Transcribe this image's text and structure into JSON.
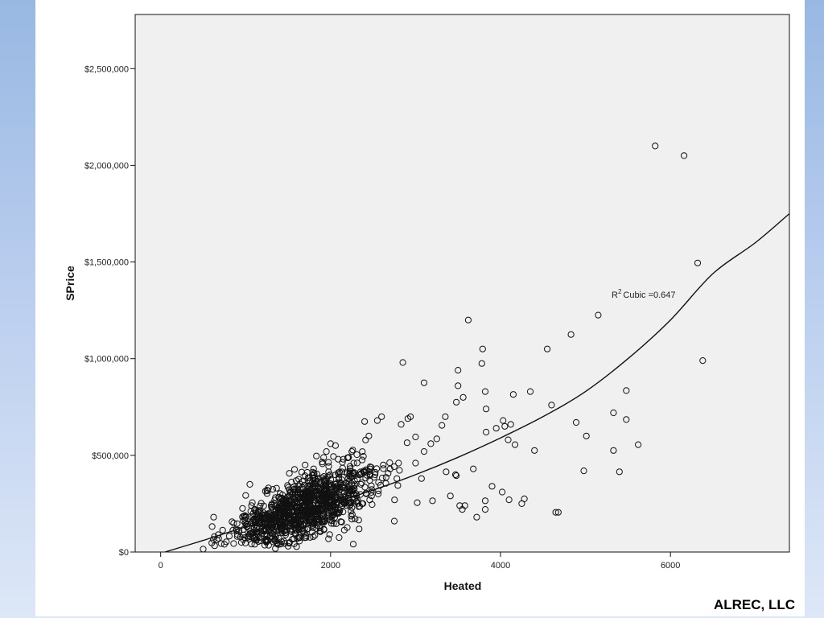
{
  "footer": {
    "credit": "ALREC, LLC"
  },
  "colors": {
    "plot_background": "#f0f0f0",
    "marker_stroke": "#111111",
    "fit_line": "#111111"
  },
  "chart_data": {
    "type": "scatter",
    "xlabel": "Heated",
    "ylabel": "SPrice",
    "xlim": [
      -300,
      7400
    ],
    "ylim": [
      0,
      2780000
    ],
    "x_ticks": [
      0,
      2000,
      4000,
      6000
    ],
    "x_tick_labels": [
      "0",
      "2000",
      "4000",
      "6000"
    ],
    "y_ticks": [
      0,
      500000,
      1000000,
      1500000,
      2000000,
      2500000
    ],
    "y_tick_labels": [
      "$0",
      "$500,000",
      "$1,000,000",
      "$1,500,000",
      "$2,000,000",
      "$2,500,000"
    ],
    "grid": false,
    "marker": "open-circle",
    "fit": {
      "type": "cubic",
      "label_prefix": "R",
      "label_superscript": "2",
      "label_text": "Cubic =0.647",
      "curve": [
        [
          50,
          0
        ],
        [
          500,
          60000
        ],
        [
          1000,
          130000
        ],
        [
          1500,
          190000
        ],
        [
          2000,
          250000
        ],
        [
          2500,
          320000
        ],
        [
          3000,
          400000
        ],
        [
          3500,
          490000
        ],
        [
          4000,
          590000
        ],
        [
          4500,
          700000
        ],
        [
          5000,
          830000
        ],
        [
          5500,
          1000000
        ],
        [
          6000,
          1200000
        ],
        [
          6500,
          1440000
        ],
        [
          7000,
          1600000
        ],
        [
          7400,
          1750000
        ]
      ]
    },
    "dense_cluster": {
      "x_center": 1700,
      "x_spread": 700,
      "slope": 160,
      "intercept": -40000,
      "noise": 65000
    },
    "points": [
      [
        5820,
        2100000
      ],
      [
        6160,
        2050000
      ],
      [
        6320,
        1495000
      ],
      [
        6380,
        990000
      ],
      [
        5150,
        1225000
      ],
      [
        4830,
        1125000
      ],
      [
        4550,
        1050000
      ],
      [
        4350,
        830000
      ],
      [
        4600,
        760000
      ],
      [
        5480,
        835000
      ],
      [
        5330,
        720000
      ],
      [
        5480,
        685000
      ],
      [
        4890,
        670000
      ],
      [
        5010,
        600000
      ],
      [
        5330,
        525000
      ],
      [
        5620,
        555000
      ],
      [
        5400,
        415000
      ],
      [
        4980,
        420000
      ],
      [
        4650,
        205000
      ],
      [
        4680,
        205000
      ],
      [
        4250,
        250000
      ],
      [
        4280,
        275000
      ],
      [
        4100,
        270000
      ],
      [
        3900,
        340000
      ],
      [
        4020,
        310000
      ],
      [
        3620,
        1200000
      ],
      [
        3790,
        1050000
      ],
      [
        3780,
        975000
      ],
      [
        3820,
        830000
      ],
      [
        3830,
        740000
      ],
      [
        3500,
        940000
      ],
      [
        3500,
        860000
      ],
      [
        3480,
        775000
      ],
      [
        3560,
        800000
      ],
      [
        4150,
        815000
      ],
      [
        4120,
        660000
      ],
      [
        4030,
        680000
      ],
      [
        4050,
        650000
      ],
      [
        4090,
        580000
      ],
      [
        4170,
        555000
      ],
      [
        4400,
        525000
      ],
      [
        3950,
        640000
      ],
      [
        3830,
        620000
      ],
      [
        3680,
        430000
      ],
      [
        3580,
        240000
      ],
      [
        3520,
        240000
      ],
      [
        3550,
        220000
      ],
      [
        3820,
        265000
      ],
      [
        3820,
        220000
      ],
      [
        3720,
        180000
      ],
      [
        3100,
        875000
      ],
      [
        2850,
        980000
      ],
      [
        3350,
        700000
      ],
      [
        3310,
        655000
      ],
      [
        3470,
        400000
      ],
      [
        3480,
        395000
      ],
      [
        3360,
        415000
      ],
      [
        3410,
        290000
      ],
      [
        3200,
        265000
      ],
      [
        3020,
        255000
      ],
      [
        2940,
        700000
      ],
      [
        2910,
        690000
      ],
      [
        2830,
        660000
      ],
      [
        2600,
        700000
      ],
      [
        2550,
        680000
      ],
      [
        2400,
        675000
      ],
      [
        3000,
        595000
      ],
      [
        2900,
        565000
      ],
      [
        3180,
        560000
      ],
      [
        3250,
        585000
      ],
      [
        3100,
        520000
      ],
      [
        3000,
        460000
      ],
      [
        2800,
        460000
      ],
      [
        2700,
        430000
      ],
      [
        2620,
        450000
      ],
      [
        3070,
        380000
      ],
      [
        2780,
        380000
      ],
      [
        2560,
        300000
      ],
      [
        2380,
        250000
      ],
      [
        2300,
        260000
      ],
      [
        2750,
        160000
      ],
      [
        2250,
        170000
      ],
      [
        2100,
        75000
      ],
      [
        1500,
        30000
      ],
      [
        1600,
        28000
      ],
      [
        1370,
        42000
      ],
      [
        1350,
        18000
      ],
      [
        950,
        50000
      ],
      [
        750,
        40000
      ],
      [
        500,
        15000
      ],
      [
        1050,
        350000
      ],
      [
        1250,
        320000
      ],
      [
        1700,
        450000
      ],
      [
        1800,
        430000
      ],
      [
        1950,
        520000
      ],
      [
        2000,
        560000
      ],
      [
        2150,
        480000
      ],
      [
        2250,
        520000
      ],
      [
        2450,
        600000
      ]
    ]
  }
}
